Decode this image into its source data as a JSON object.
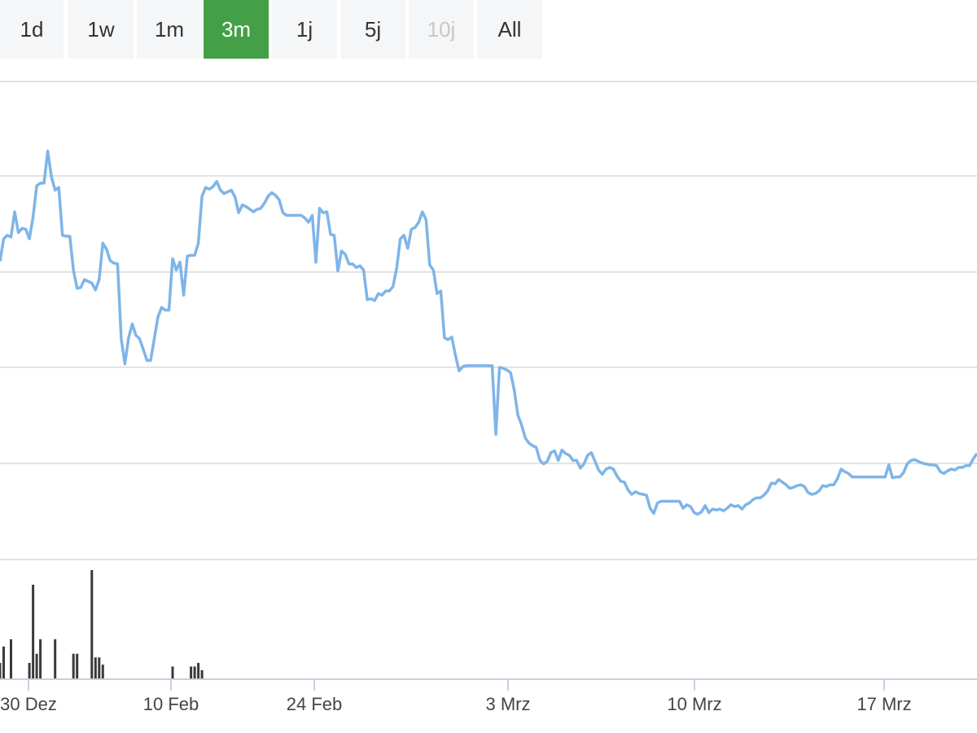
{
  "range_selector": {
    "buttons": [
      {
        "label": "1d",
        "state": "normal"
      },
      {
        "label": "1w",
        "state": "normal"
      },
      {
        "label": "1m",
        "state": "normal"
      },
      {
        "label": "3m",
        "state": "active"
      },
      {
        "label": "1j",
        "state": "normal"
      },
      {
        "label": "5j",
        "state": "normal"
      },
      {
        "label": "10j",
        "state": "disabled"
      },
      {
        "label": "All",
        "state": "normal"
      }
    ]
  },
  "colors": {
    "line": "#7eb5e8",
    "volume_bar": "#3a3a3a",
    "active_button": "#43a047",
    "grid": "#e3e3e3"
  },
  "chart_data": {
    "type": "line",
    "series": [
      {
        "values": [
          79.3,
          81.9,
          82.3,
          82.1,
          85.0,
          82.6,
          83.1,
          83.0,
          81.9,
          84.4,
          88.0,
          88.3,
          88.3,
          92.0,
          89.0,
          87.5,
          87.8,
          82.3,
          82.2,
          82.2,
          78.3,
          76.2,
          76.3,
          77.2,
          77.0,
          76.8,
          76.0,
          77.2,
          81.4,
          80.7,
          79.4,
          79.1,
          79.0,
          70.4,
          67.5,
          70.5,
          72.1,
          70.8,
          70.4,
          69.2,
          67.9,
          67.9,
          70.4,
          72.9,
          74.0,
          73.7,
          73.7,
          79.6,
          78.3,
          79.2,
          75.4,
          79.9,
          80.0,
          80.0,
          81.4,
          86.8,
          87.8,
          87.6,
          87.9,
          88.5,
          87.5,
          87.1,
          87.3,
          87.5,
          86.7,
          84.9,
          85.8,
          85.6,
          85.3,
          85.0,
          85.3,
          85.4,
          86.0,
          86.8,
          87.2,
          86.9,
          86.4,
          84.9,
          84.6,
          84.6,
          84.6,
          84.6,
          84.6,
          84.3,
          83.8,
          84.6,
          79.2,
          85.4,
          84.9,
          85.0,
          82.4,
          82.3,
          78.2,
          80.5,
          80.1,
          79.0,
          79.0,
          78.6,
          78.8,
          78.3,
          74.9,
          75.0,
          74.8,
          75.6,
          75.4,
          75.9,
          75.9,
          76.4,
          78.5,
          81.9,
          82.3,
          80.8,
          83.0,
          83.2,
          83.8,
          85.0,
          84.1,
          78.9,
          78.3,
          75.6,
          75.9,
          70.5,
          70.3,
          70.6,
          68.5,
          66.7,
          67.2,
          67.3,
          67.3,
          67.3,
          67.3,
          67.3,
          67.3,
          67.3,
          67.3,
          59.4,
          67.1,
          67.0,
          66.8,
          66.5,
          64.5,
          61.6,
          60.5,
          59.0,
          58.4,
          58.1,
          57.9,
          56.4,
          56.0,
          56.3,
          57.3,
          57.5,
          56.4,
          57.6,
          57.2,
          57.0,
          56.4,
          56.4,
          55.5,
          56.0,
          57.0,
          57.3,
          56.3,
          55.3,
          54.8,
          55.4,
          55.6,
          55.4,
          54.6,
          54.0,
          53.9,
          53.0,
          52.5,
          52.8,
          52.6,
          52.5,
          52.4,
          50.9,
          50.3,
          51.5,
          51.7,
          51.7,
          51.7,
          51.7,
          51.7,
          51.7,
          50.9,
          51.3,
          51.1,
          50.4,
          50.2,
          50.5,
          51.2,
          50.4,
          50.8,
          50.7,
          50.8,
          50.6,
          50.9,
          51.3,
          51.1,
          51.2,
          50.8,
          51.3,
          51.5,
          51.9,
          52.1,
          52.1,
          52.4,
          52.9,
          53.8,
          53.7,
          54.2,
          53.9,
          53.6,
          53.2,
          53.3,
          53.5,
          53.6,
          53.4,
          52.7,
          52.5,
          52.6,
          52.9,
          53.5,
          53.4,
          53.6,
          53.6,
          54.3,
          55.4,
          55.1,
          54.9,
          54.5,
          54.5,
          54.5,
          54.5,
          54.5,
          54.5,
          54.5,
          54.5,
          54.5,
          54.5,
          55.9,
          54.4,
          54.5,
          54.5,
          55.0,
          56.0,
          56.4,
          56.5,
          56.3,
          56.1,
          56.0,
          55.9,
          55.9,
          55.8,
          55.1,
          54.9,
          55.2,
          55.4,
          55.3,
          55.6,
          55.6,
          55.8,
          55.8,
          56.6,
          57.2
        ]
      }
    ],
    "volume": [
      9,
      18,
      0,
      22,
      0,
      0,
      0,
      0,
      9,
      52,
      14,
      22,
      0,
      0,
      0,
      22,
      0,
      0,
      0,
      0,
      14,
      14,
      0,
      0,
      0,
      60,
      12,
      12,
      8,
      0,
      0,
      0,
      0,
      0,
      0,
      0,
      0,
      0,
      0,
      0,
      0,
      0,
      0,
      0,
      0,
      0,
      0,
      7,
      0,
      0,
      0,
      0,
      7,
      7,
      9,
      5,
      0,
      0,
      0,
      0,
      0,
      0,
      0,
      0,
      0,
      0,
      0,
      0,
      0,
      0,
      0,
      0,
      0,
      0,
      0,
      0,
      0,
      0,
      0,
      0,
      0,
      0,
      0,
      0,
      0,
      0,
      0,
      0,
      0,
      0,
      0,
      0,
      0,
      0,
      0,
      0,
      0,
      0,
      0,
      0,
      0,
      0,
      0,
      0,
      0,
      0,
      0,
      0,
      0,
      0,
      0,
      0,
      0,
      0,
      0,
      0,
      0,
      0,
      0,
      0,
      0,
      0,
      0,
      0,
      0,
      0,
      0,
      0,
      0,
      0,
      0,
      0,
      0,
      0,
      0,
      0,
      0,
      0,
      0,
      0,
      0,
      0,
      0,
      0,
      0,
      0,
      0,
      0,
      0,
      0,
      0,
      0,
      0,
      0,
      0,
      0,
      0,
      0,
      0,
      0,
      0,
      0,
      0,
      0,
      0,
      0,
      0,
      0,
      0,
      0,
      0,
      0,
      0,
      0,
      0,
      0,
      0,
      0,
      0,
      0,
      0,
      0,
      0,
      0,
      0,
      0,
      0,
      0,
      0,
      0,
      0,
      0,
      0,
      0,
      0,
      0,
      0,
      0,
      0,
      0,
      0,
      0,
      0,
      0,
      0,
      0,
      0,
      0,
      0,
      0,
      0,
      0,
      0,
      0,
      0,
      0,
      0,
      0,
      0,
      0,
      0,
      0,
      0,
      0,
      0,
      0,
      0,
      0,
      0,
      0,
      0,
      0,
      0,
      0,
      0,
      0,
      0,
      0,
      0,
      0,
      0,
      0,
      0,
      0,
      0,
      0,
      0,
      0,
      0,
      0,
      0,
      0,
      0,
      0,
      0,
      0,
      0,
      0,
      0,
      0,
      0,
      0,
      0,
      0,
      0,
      0,
      0,
      0,
      0,
      0,
      0,
      0,
      0,
      0,
      0,
      0,
      0,
      0,
      0,
      0,
      0,
      0,
      0,
      0,
      0,
      0,
      0,
      0,
      0,
      0,
      0,
      0
    ],
    "x_ticks": [
      "30 Dez",
      "10 Feb",
      "24 Feb",
      "3 Mrz",
      "10 Mrz",
      "17 Mrz"
    ],
    "xlabel": "",
    "ylabel": "",
    "ylim": [
      45,
      100
    ],
    "grid": true,
    "legend": "none"
  }
}
